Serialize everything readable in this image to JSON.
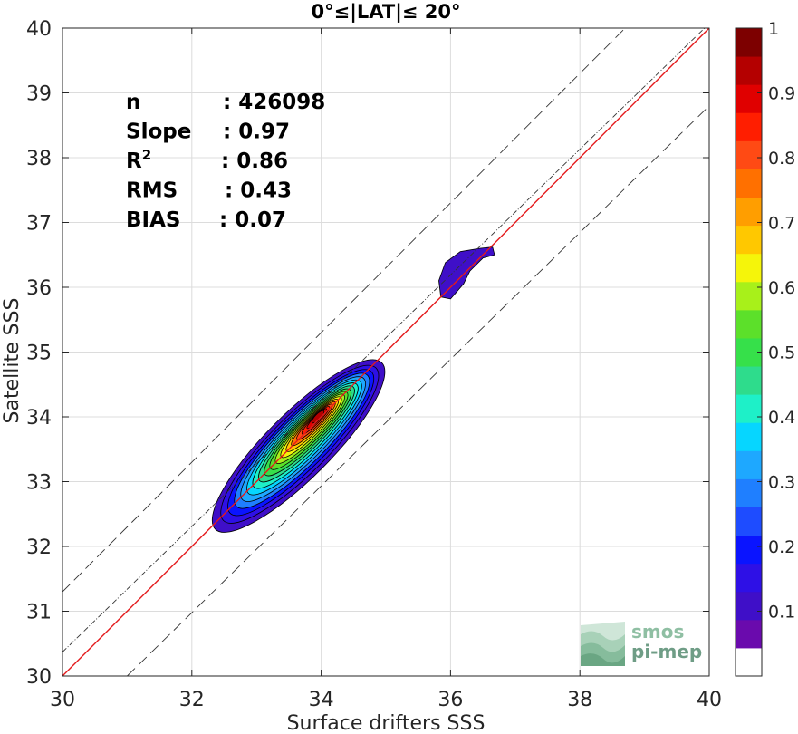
{
  "chart_data": {
    "type": "contour",
    "title": "0°≤|LAT|≤ 20°",
    "xlabel": "Surface drifters SSS",
    "ylabel": "Satellite SSS",
    "xlim": [
      30,
      40
    ],
    "ylim": [
      30,
      40
    ],
    "xticks": [
      30,
      32,
      34,
      36,
      38,
      40
    ],
    "yticks": [
      30,
      31,
      32,
      33,
      34,
      35,
      36,
      37,
      38,
      39,
      40
    ],
    "grid": true,
    "stats": [
      {
        "label": "n",
        "value": ": 426098"
      },
      {
        "label": "Slope",
        "value": ": 0.97"
      },
      {
        "label": "R",
        "sup": "2",
        "value": ": 0.86"
      },
      {
        "label": "RMS",
        "value": ": 0.43"
      },
      {
        "label": "BIAS",
        "value": ": 0.07"
      }
    ],
    "lines": [
      {
        "role": "one-to-one",
        "color": "#e41a1c",
        "points": [
          [
            30,
            30
          ],
          [
            40,
            40
          ]
        ]
      },
      {
        "role": "regression",
        "color": "#333333",
        "slope": 0.97,
        "intercept": 1.27
      },
      {
        "role": "upper-bound",
        "color": "#333333",
        "dash": true,
        "points": [
          [
            30,
            31.3
          ],
          [
            40,
            41.3
          ]
        ]
      },
      {
        "role": "lower-bound",
        "color": "#333333",
        "dash": true,
        "points": [
          [
            31,
            30
          ],
          [
            40,
            38.8
          ]
        ]
      }
    ],
    "density_main": {
      "center": [
        33.65,
        33.55
      ],
      "angle_deg": 45,
      "semi_major": 1.82,
      "semi_minor": 0.5
    },
    "density_levels": [
      0.1,
      0.15,
      0.2,
      0.25,
      0.3,
      0.35,
      0.4,
      0.45,
      0.5,
      0.55,
      0.6,
      0.65,
      0.7,
      0.75,
      0.8,
      0.85,
      0.9,
      0.95
    ],
    "density_peak_center": [
      33.95,
      34.0
    ],
    "density_secondary": {
      "level": 0.1,
      "outline": [
        [
          35.85,
          35.85
        ],
        [
          35.82,
          36.1
        ],
        [
          35.92,
          36.38
        ],
        [
          36.15,
          36.55
        ],
        [
          36.45,
          36.6
        ],
        [
          36.65,
          36.62
        ],
        [
          36.68,
          36.5
        ],
        [
          36.5,
          36.45
        ],
        [
          36.3,
          36.25
        ],
        [
          36.2,
          36.05
        ],
        [
          36.0,
          35.82
        ]
      ]
    },
    "colorbar": {
      "ticks": [
        0.1,
        0.2,
        0.3,
        0.4,
        0.5,
        0.6,
        0.7,
        0.8,
        0.9,
        1
      ],
      "tick_labels": [
        "0.1",
        "0.2",
        "0.3",
        "0.4",
        "0.5",
        "0.6",
        "0.7",
        "0.8",
        "0.9",
        "1"
      ],
      "colors": [
        "#ffffff",
        "#6a0aad",
        "#3f0fc8",
        "#2e10e6",
        "#0a14ff",
        "#1e4cff",
        "#1f7fff",
        "#1ea8ff",
        "#06d6ff",
        "#1ef0c8",
        "#2edc8c",
        "#36e04a",
        "#5ce02a",
        "#a8f01a",
        "#f5f50a",
        "#ffc800",
        "#ff9e00",
        "#ff7000",
        "#ff4a14",
        "#ff1e00",
        "#e00000",
        "#b40000",
        "#7d0000"
      ]
    }
  },
  "logo": {
    "line1": "smos",
    "line2": "pi-mep"
  }
}
